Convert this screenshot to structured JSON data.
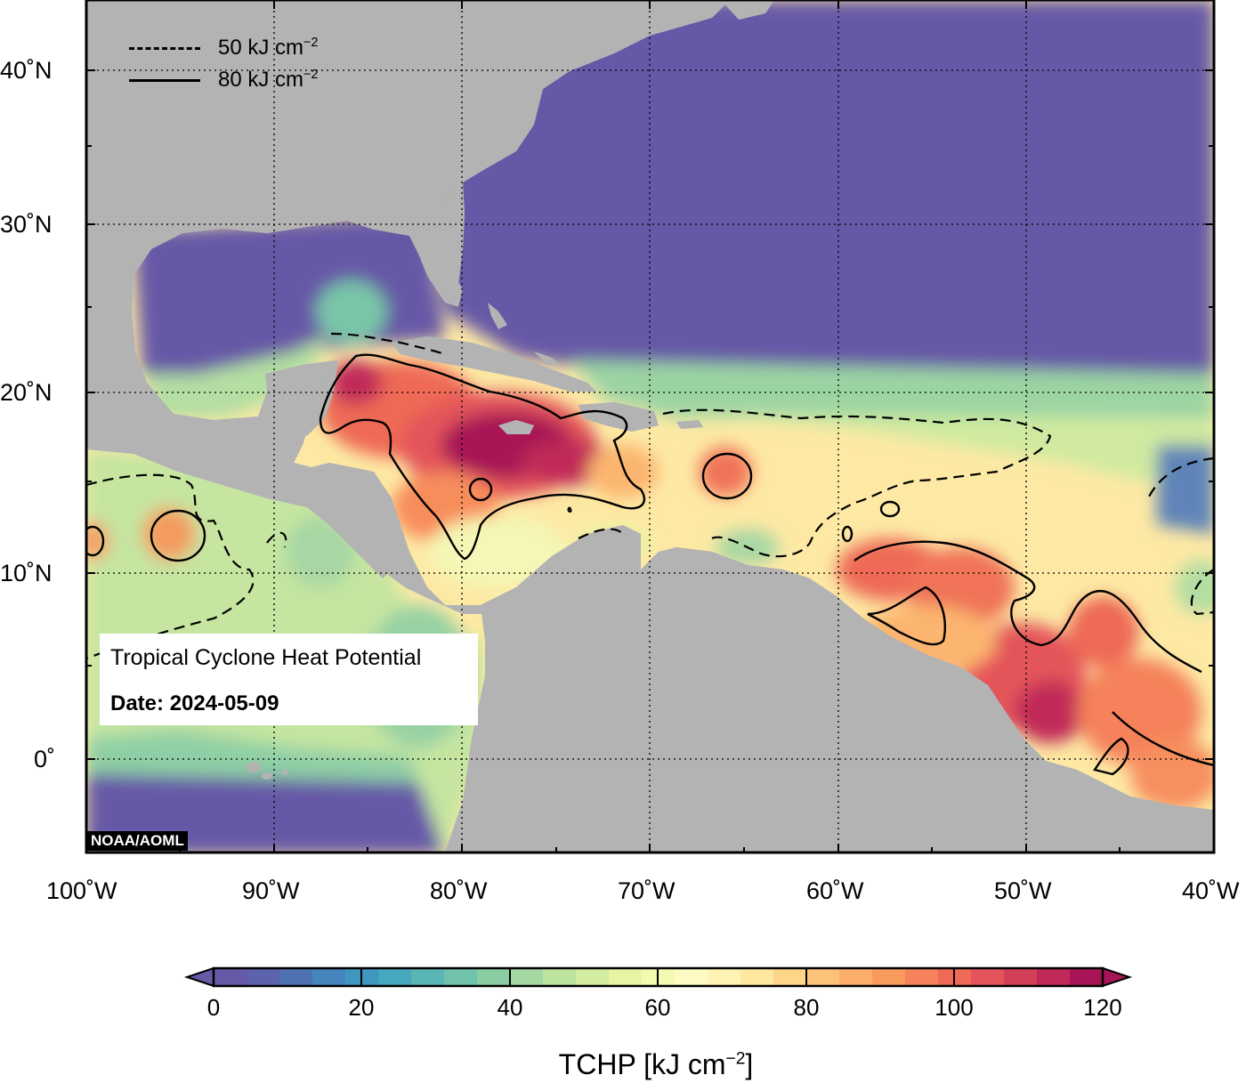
{
  "map": {
    "title": "Tropical Cyclone Heat Potential",
    "date_label": "Date:",
    "date_value": "2024-05-09",
    "credit": "NOAA/AOML",
    "lon_labels": [
      "100˚W",
      "90˚W",
      "80˚W",
      "70˚W",
      "60˚W",
      "50˚W",
      "40˚W"
    ],
    "lat_labels": [
      "40˚N",
      "30˚N",
      "20˚N",
      "10˚N",
      "0˚"
    ],
    "legend": [
      {
        "style": "dashed",
        "label": "50 kJ cm",
        "exp": "−2"
      },
      {
        "style": "solid",
        "label": "80 kJ cm",
        "exp": "−2"
      }
    ],
    "colors": {
      "land": "#b3b3b3",
      "deep_ocean": "#6659a6",
      "contour": "#000000"
    }
  },
  "colorbar": {
    "title": "TCHP [kJ cm",
    "title_exp": "−2",
    "title_close": "]",
    "ticks": [
      "0",
      "20",
      "40",
      "60",
      "80",
      "100",
      "120"
    ],
    "colors": [
      "#6659a6",
      "#5d62ad",
      "#4f72b4",
      "#4585bd",
      "#3f97c0",
      "#46a8bd",
      "#5ab6b4",
      "#70c2aa",
      "#8acda3",
      "#a4d8a2",
      "#bde3a0",
      "#d3eda0",
      "#e6f4a3",
      "#f4f9b2",
      "#fdfac3",
      "#fff3b4",
      "#fee8a0",
      "#fed68a",
      "#fdc379",
      "#fcae6b",
      "#f99a5d",
      "#f5825a",
      "#ee6a56",
      "#e4545a",
      "#d43f58",
      "#c12a58",
      "#a81556"
    ]
  }
}
